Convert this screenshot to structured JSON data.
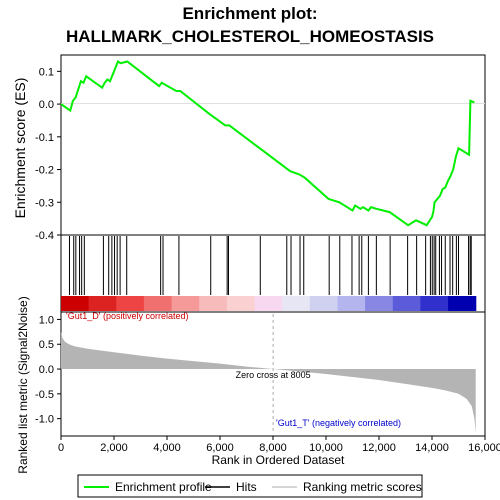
{
  "chart_data": {
    "type": "line",
    "title_line1": "Enrichment plot:",
    "title_line2": "HALLMARK_CHOLESTEROL_HOMEOSTASIS",
    "x_range": [
      0,
      16000
    ],
    "x_ticks": [
      0,
      2000,
      4000,
      6000,
      8000,
      10000,
      12000,
      14000,
      16000
    ],
    "x_tick_labels": [
      "0",
      "2,000",
      "4,000",
      "6,000",
      "8,000",
      "10,000",
      "12,000",
      "14,000",
      "16,000"
    ],
    "xlabel": "Rank in Ordered Dataset",
    "es_panel": {
      "ylabel": "Enrichment score (ES)",
      "ylim": [
        -0.4,
        0.15
      ],
      "y_ticks": [
        0.1,
        0.0,
        -0.1,
        -0.2,
        -0.3,
        -0.4
      ],
      "y_tick_labels": [
        "0.1",
        "0.0",
        "-0.1",
        "-0.2",
        "-0.3",
        "-0.4"
      ],
      "line_color": "#00ee00",
      "series": [
        {
          "x": [
            0,
            350,
            450,
            550,
            650,
            750,
            850,
            950,
            1550,
            1650,
            1750,
            1850,
            1950,
            2050,
            2150,
            2250,
            2500,
            3700,
            3800,
            4350,
            4500,
            5600,
            6200,
            6350,
            7500,
            8650,
            9000,
            9200,
            10100,
            10500,
            11000,
            11100,
            11300,
            11400,
            11600,
            11700,
            11900,
            12400,
            13100,
            13400,
            13800,
            14000,
            14050,
            14100,
            14200,
            14300,
            14400,
            14500,
            14600,
            14700,
            14800,
            14900,
            15000,
            15400,
            15450,
            15600
          ],
          "y": [
            0.0,
            -0.02,
            0.01,
            0.02,
            0.045,
            0.07,
            0.065,
            0.085,
            0.05,
            0.065,
            0.075,
            0.07,
            0.09,
            0.11,
            0.13,
            0.125,
            0.13,
            0.055,
            0.065,
            0.04,
            0.04,
            -0.03,
            -0.065,
            -0.065,
            -0.135,
            -0.205,
            -0.215,
            -0.225,
            -0.29,
            -0.3,
            -0.325,
            -0.31,
            -0.32,
            -0.315,
            -0.325,
            -0.315,
            -0.32,
            -0.33,
            -0.37,
            -0.355,
            -0.37,
            -0.345,
            -0.33,
            -0.3,
            -0.29,
            -0.28,
            -0.26,
            -0.255,
            -0.235,
            -0.22,
            -0.2,
            -0.16,
            -0.135,
            -0.155,
            0.01,
            0.005
          ]
        }
      ]
    },
    "hits": [
      320,
      480,
      560,
      700,
      780,
      880,
      1600,
      1800,
      1920,
      2020,
      2120,
      2230,
      2480,
      3760,
      3850,
      4450,
      5650,
      6270,
      6320,
      7520,
      8520,
      8680,
      9020,
      9160,
      10120,
      10520,
      10980,
      11250,
      11350,
      11600,
      11900,
      12420,
      13080,
      13420,
      13760,
      13940,
      14010,
      14080,
      14140,
      14280,
      14360,
      14500,
      14680,
      14780,
      14920,
      15000,
      15380,
      15440,
      15480
    ],
    "color_bar": {
      "colors": [
        "#cc0000",
        "#dd2222",
        "#ee4444",
        "#f07070",
        "#f59999",
        "#f8bbbb",
        "#fad0d0",
        "#f8d8f0",
        "#e6e6f4",
        "#d0d0f0",
        "#b4b4ee",
        "#8888e4",
        "#5c5cda",
        "#3030cc",
        "#0000b0"
      ]
    },
    "metric_panel": {
      "ylabel": "Ranked list metric (Signal2Noise)",
      "ylim": [
        -1.35,
        1.15
      ],
      "y_ticks": [
        1.0,
        0.5,
        0.0,
        -0.5,
        -1.0
      ],
      "y_tick_labels": [
        "1.0",
        "0.5",
        "0.0",
        "-0.5",
        "-1.0"
      ],
      "x": [
        0,
        60,
        150,
        300,
        500,
        1000,
        2000,
        3000,
        4000,
        5000,
        6000,
        7000,
        8005,
        9000,
        10000,
        11000,
        12000,
        13000,
        14000,
        14500,
        15000,
        15300,
        15500,
        15600,
        15650
      ],
      "values": [
        0.75,
        0.62,
        0.55,
        0.5,
        0.46,
        0.41,
        0.34,
        0.27,
        0.21,
        0.16,
        0.11,
        0.05,
        0.0,
        -0.05,
        -0.1,
        -0.16,
        -0.22,
        -0.3,
        -0.38,
        -0.43,
        -0.5,
        -0.6,
        -0.75,
        -1.0,
        -1.3
      ],
      "fill_color": "#b4b4b4",
      "zero_cross_label": "Zero cross at 8005",
      "zero_cross_x": 8005,
      "pos_label": "'Gut1_D' (positively correlated)",
      "neg_label": "'Gut1_T' (negatively correlated)"
    },
    "legend": {
      "items": [
        {
          "label": "Enrichment profile",
          "color": "#00ee00",
          "kind": "line"
        },
        {
          "label": "Hits",
          "color": "#000000",
          "kind": "line"
        },
        {
          "label": "Ranking metric scores",
          "color": "#c8c8c8",
          "kind": "line"
        }
      ]
    }
  }
}
